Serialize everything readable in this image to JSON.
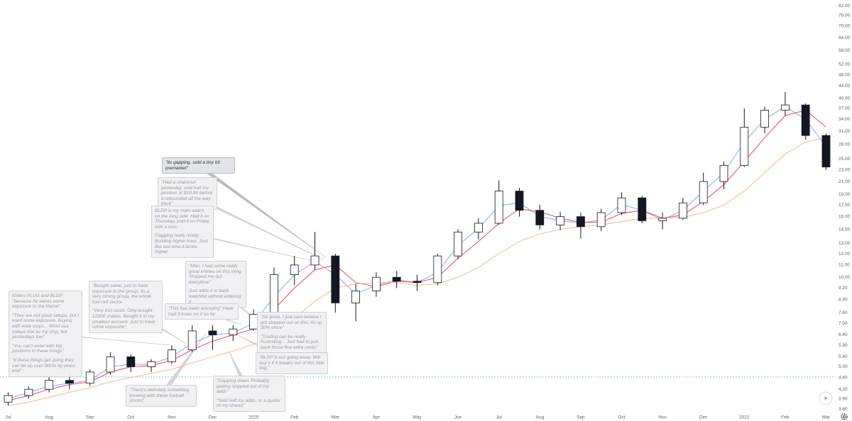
{
  "chart_data": {
    "type": "candlestick",
    "log_scale": true,
    "grid": false,
    "up_color": "#ffffff",
    "down_color": "#131722",
    "wick_color": "#131722",
    "xlim": [
      -0.2,
      20.2
    ],
    "ylim": [
      3.47,
      85.7
    ],
    "xticks": [
      {
        "value": 0,
        "label": "Jul"
      },
      {
        "value": 1,
        "label": "Aug"
      },
      {
        "value": 2,
        "label": "Sep"
      },
      {
        "value": 3,
        "label": "Oct"
      },
      {
        "value": 4,
        "label": "Nov"
      },
      {
        "value": 5,
        "label": "Dec"
      },
      {
        "value": 6,
        "label": "2020"
      },
      {
        "value": 7,
        "label": "Feb"
      },
      {
        "value": 8,
        "label": "Mar"
      },
      {
        "value": 9,
        "label": "Apr"
      },
      {
        "value": 10,
        "label": "May"
      },
      {
        "value": 11,
        "label": "Jun"
      },
      {
        "value": 12,
        "label": "Jul"
      },
      {
        "value": 13,
        "label": "Aug"
      },
      {
        "value": 14,
        "label": "Sep"
      },
      {
        "value": 15,
        "label": "Oct"
      },
      {
        "value": 16,
        "label": "Nov"
      },
      {
        "value": 17,
        "label": "Dec"
      },
      {
        "value": 18,
        "label": "2021"
      },
      {
        "value": 19,
        "label": "Feb"
      },
      {
        "value": 20,
        "label": "Mar"
      }
    ],
    "yticks": [
      {
        "value": 82,
        "label": "82.00"
      },
      {
        "value": 76,
        "label": "76.00"
      },
      {
        "value": 70,
        "label": "70.00"
      },
      {
        "value": 64,
        "label": "64.00"
      },
      {
        "value": 58,
        "label": "58.00"
      },
      {
        "value": 52,
        "label": "52.00"
      },
      {
        "value": 48,
        "label": "48.00"
      },
      {
        "value": 44,
        "label": "44.00"
      },
      {
        "value": 40,
        "label": "40.00"
      },
      {
        "value": 37,
        "label": "37.00"
      },
      {
        "value": 34,
        "label": "34.00"
      },
      {
        "value": 31,
        "label": "31.00"
      },
      {
        "value": 28,
        "label": "28.00"
      },
      {
        "value": 25,
        "label": "25.00"
      },
      {
        "value": 23,
        "label": "23.00"
      },
      {
        "value": 21,
        "label": "21.00"
      },
      {
        "value": 19,
        "label": "19.00"
      },
      {
        "value": 17.5,
        "label": "17.50"
      },
      {
        "value": 16,
        "label": "16.00"
      },
      {
        "value": 14.5,
        "label": "14.50"
      },
      {
        "value": 13,
        "label": "13.00"
      },
      {
        "value": 12,
        "label": "12.00"
      },
      {
        "value": 11,
        "label": "11.00"
      },
      {
        "value": 10,
        "label": "10.00"
      },
      {
        "value": 9.2,
        "label": "9.20"
      },
      {
        "value": 8.4,
        "label": "8.40"
      },
      {
        "value": 7.6,
        "label": "7.60"
      },
      {
        "value": 7,
        "label": "7.00"
      },
      {
        "value": 6.4,
        "label": "6.40"
      },
      {
        "value": 5.9,
        "label": "5.90"
      },
      {
        "value": 5.4,
        "label": "5.40"
      },
      {
        "value": 5,
        "label": "5.00"
      },
      {
        "value": 4.6,
        "label": "4.60"
      },
      {
        "value": 4.2,
        "label": "4.20"
      },
      {
        "value": 3.9,
        "label": "3.90"
      },
      {
        "value": 3.6,
        "label": "3.60"
      }
    ],
    "x": [
      0,
      0.5,
      1,
      1.5,
      2,
      2.5,
      3,
      3.5,
      4,
      4.5,
      5,
      5.5,
      6,
      6.5,
      7,
      7.5,
      8,
      8.5,
      9,
      9.5,
      10,
      10.5,
      11,
      11.5,
      12,
      12.5,
      13,
      13.5,
      14,
      14.5,
      15,
      15.5,
      16,
      16.5,
      17,
      17.5,
      18,
      18.5,
      19,
      19.5,
      20
    ],
    "open": [
      3.8,
      4.0,
      4.2,
      4.5,
      4.4,
      4.8,
      5.4,
      5.0,
      5.2,
      5.7,
      6.6,
      6.4,
      6.7,
      7.5,
      10.2,
      11.0,
      11.8,
      8.2,
      9.0,
      10.0,
      9.7,
      9.6,
      11.8,
      14.2,
      15.2,
      19.5,
      16.8,
      15.0,
      16.0,
      14.8,
      16.5,
      18.5,
      15.5,
      15.8,
      17.8,
      21.0,
      23.8,
      32.0,
      36.5,
      38.0,
      30.0
    ],
    "high": [
      4.1,
      4.3,
      4.7,
      4.8,
      4.9,
      5.6,
      5.5,
      5.3,
      5.9,
      6.9,
      6.9,
      6.9,
      7.8,
      10.8,
      11.8,
      14.2,
      12.0,
      9.5,
      10.4,
      10.5,
      10.2,
      12.0,
      14.5,
      15.8,
      21.2,
      20.0,
      17.5,
      16.6,
      16.5,
      17.0,
      19.3,
      18.8,
      16.5,
      18.5,
      22.5,
      24.5,
      37.0,
      37.5,
      42.0,
      38.5,
      30.5
    ],
    "low": [
      3.7,
      3.9,
      4.1,
      4.2,
      4.3,
      4.7,
      4.8,
      4.8,
      5.1,
      5.6,
      5.7,
      6.1,
      6.6,
      7.4,
      9.4,
      10.6,
      7.6,
      7.1,
      8.6,
      9.2,
      9.0,
      9.4,
      11.5,
      13.4,
      15.0,
      16.0,
      14.5,
      14.4,
      13.5,
      14.3,
      16.2,
      15.2,
      14.5,
      15.6,
      17.5,
      19.8,
      23.5,
      30.5,
      35.0,
      29.0,
      23.0
    ],
    "close": [
      4.0,
      4.2,
      4.5,
      4.4,
      4.8,
      5.4,
      5.0,
      5.2,
      5.7,
      6.6,
      6.4,
      6.7,
      7.5,
      10.2,
      11.0,
      11.8,
      8.2,
      9.0,
      10.0,
      9.7,
      9.6,
      11.8,
      14.2,
      15.2,
      19.5,
      16.8,
      15.0,
      16.0,
      14.8,
      16.5,
      18.5,
      15.5,
      15.8,
      17.8,
      21.0,
      23.8,
      32.0,
      36.5,
      38.0,
      30.0,
      23.5
    ],
    "lines": [
      {
        "color": "#7fb0e6",
        "values": [
          3.9,
          4.1,
          4.3,
          4.4,
          4.5,
          5.0,
          5.1,
          5.1,
          5.4,
          6.0,
          6.4,
          6.5,
          7.0,
          8.6,
          10.2,
          11.3,
          10.2,
          8.8,
          9.4,
          9.8,
          9.6,
          10.4,
          12.8,
          14.6,
          17.4,
          17.8,
          16.0,
          15.5,
          15.2,
          15.6,
          17.6,
          16.8,
          15.6,
          16.8,
          19.5,
          22.5,
          28.5,
          34.0,
          37.5,
          34.0,
          27.5
        ]
      },
      {
        "color": "#e8485a",
        "values": [
          3.85,
          4.0,
          4.2,
          4.35,
          4.45,
          4.8,
          5.0,
          5.05,
          5.25,
          5.7,
          6.1,
          6.4,
          6.7,
          7.8,
          9.2,
          10.6,
          11.0,
          9.6,
          9.3,
          9.7,
          9.6,
          10.0,
          11.6,
          13.2,
          15.2,
          17.0,
          16.6,
          15.8,
          15.3,
          15.3,
          16.4,
          16.8,
          15.8,
          16.2,
          18.0,
          20.5,
          24.5,
          29.5,
          35.0,
          36.5,
          32.0
        ]
      },
      {
        "color": "#f5b98a",
        "values": [
          3.7,
          3.8,
          3.95,
          4.1,
          4.25,
          4.45,
          4.6,
          4.75,
          4.9,
          5.15,
          5.4,
          5.65,
          5.95,
          6.5,
          7.3,
          8.3,
          9.2,
          9.5,
          9.6,
          9.6,
          9.4,
          9.5,
          10.0,
          10.8,
          12.0,
          13.2,
          14.0,
          14.5,
          14.8,
          15.0,
          15.4,
          15.8,
          15.8,
          15.9,
          16.5,
          17.5,
          19.5,
          22.5,
          26.0,
          28.5,
          29.5
        ]
      }
    ],
    "price_line": {
      "value": 4.62,
      "color": "#5fa8e8"
    },
    "annotations": [
      {
        "paragraphs": [
          "\"Its gapping, sold a tiny bit premarket\""
        ]
      },
      {
        "paragraphs": [
          "\"Had a shakeout yesterday, sold half my position at $10.80 before it rebounded all the way back\""
        ]
      },
      {
        "paragraphs": [
          "BLDP is my main watch on the long side. Had it on Thursday, sold it on Friday with a loss.",
          "Flagging really nicely. Building higher lows. Just like last time it broke higher."
        ]
      },
      {
        "paragraphs": [
          "\"Man, I had some really good entries on this thing. Stopped me out everytime\"",
          "Just adds it to back watchlist without entering it"
        ]
      },
      {
        "paragraphs": [
          "\"Bought some, just to have exposure to the group. Its a very strong group, the whole fuel cell sector.",
          "\"Very thin stock. Only bought 12000 shares. Bought it in my smallest account. Just to have some exposure\""
        ]
      },
      {
        "paragraphs": [
          "Enters PLUG and BLDP \"because he wants some exposure to the theme\"",
          "\"They are not great setups, but I want some exposure. Buying with wide stops... Wont use todays low as my stop, but yesterdays low\"",
          "\"You can't enter with big positions in these things\"",
          "\"If these things get going they can be up over 300% by years end\""
        ]
      },
      {
        "paragraphs": [
          "\"This has been annoying\" Have had 3 loses on it so far"
        ]
      },
      {
        "paragraphs": [
          "\"So great, I just cant believe I got stopped out on this. Its up 30% since\"",
          "\"Trading can be really frustrating... Just had to pull back those few extra cents\""
        ]
      },
      {
        "paragraphs": [
          "\"BLDP is not going away. Will buy it if it breaks out of this little flag.\""
        ]
      },
      {
        "paragraphs": [
          "\"There's definitely something brewing with these fuelcell stocks\""
        ]
      },
      {
        "paragraphs": [
          "\"Gapping down. Probably getting stopped out of my adds\"",
          "\"Sold half my adds, or a quater of my shares\""
        ]
      }
    ]
  }
}
